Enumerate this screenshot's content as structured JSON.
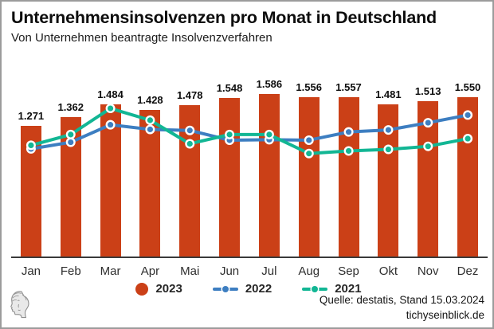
{
  "header": {
    "title": "Unternehmensinsolvenzen pro Monat in Deutschland",
    "subtitle": "Von Unternehmen beantragte Insolvenzverfahren"
  },
  "chart_data": {
    "type": "bar",
    "subtype": "bar-with-line-overlay",
    "title": "Unternehmensinsolvenzen pro Monat in Deutschland",
    "subtitle": "Von Unternehmen beantragte Insolvenzverfahren",
    "categories": [
      "Jan",
      "Feb",
      "Mar",
      "Apr",
      "Mai",
      "Jun",
      "Jul",
      "Aug",
      "Sep",
      "Okt",
      "Nov",
      "Dez"
    ],
    "ylim": [
      0,
      1600
    ],
    "grid": false,
    "legend_position": "bottom-center",
    "series": [
      {
        "name": "2023",
        "kind": "bar",
        "color": "#cb4017",
        "values": [
          1271,
          1362,
          1484,
          1428,
          1478,
          1548,
          1586,
          1556,
          1557,
          1481,
          1513,
          1550
        ],
        "value_labels": [
          "1.271",
          "1.362",
          "1.484",
          "1.428",
          "1.478",
          "1.548",
          "1.586",
          "1.556",
          "1.557",
          "1.481",
          "1.513",
          "1.550"
        ]
      },
      {
        "name": "2022",
        "kind": "line",
        "color": "#3d7ec1",
        "values": [
          1065,
          1130,
          1300,
          1255,
          1245,
          1150,
          1155,
          1150,
          1230,
          1250,
          1320,
          1395
        ]
      },
      {
        "name": "2021",
        "kind": "line",
        "color": "#12b694",
        "values": [
          1100,
          1205,
          1460,
          1345,
          1115,
          1205,
          1205,
          1020,
          1045,
          1060,
          1090,
          1165
        ]
      }
    ]
  },
  "legend": {
    "items": [
      {
        "label": "2023",
        "swatch": "circle"
      },
      {
        "label": "2022",
        "swatch": "line-dot"
      },
      {
        "label": "2021",
        "swatch": "line-dot"
      }
    ]
  },
  "footer": {
    "source_line": "Quelle: destatis, Stand 15.03.2024",
    "site_line": "tichyseinblick.de"
  },
  "colors": {
    "bar": "#cb4017",
    "line_2022": "#3d7ec1",
    "line_2021": "#12b694",
    "axis": "#3a3a3a",
    "marker_ring": "#ffffff"
  }
}
